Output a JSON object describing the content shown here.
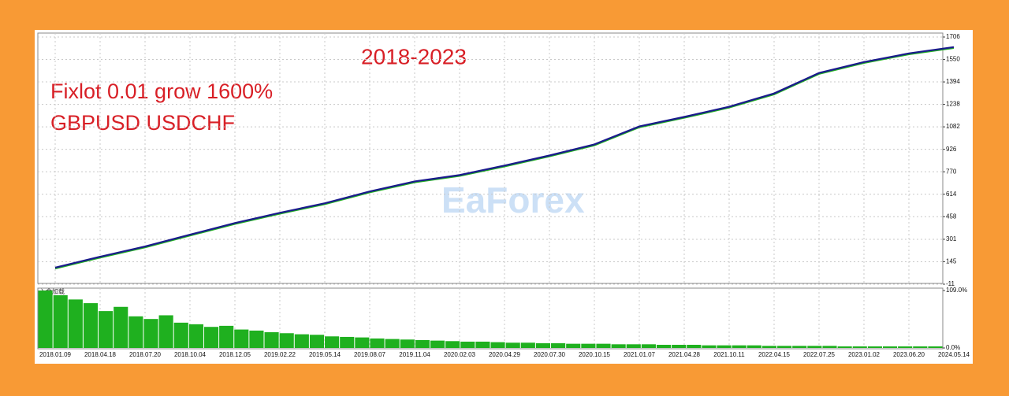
{
  "chart_data": {
    "type": "line",
    "title": "2018-2023",
    "annotations": [
      "Fixlot 0.01 grow 1600%",
      "GBPUSD USDCHF"
    ],
    "watermark": "EaForex",
    "categories": [
      "2018.01.09",
      "2018.04.18",
      "2018.07.20",
      "2018.10.04",
      "2018.12.05",
      "2019.02.22",
      "2019.05.14",
      "2019.08.07",
      "2019.11.04",
      "2020.02.03",
      "2020.04.29",
      "2020.07.30",
      "2020.10.15",
      "2021.01.07",
      "2021.04.28",
      "2021.10.11",
      "2022.04.15",
      "2022.07.25",
      "2023.01.02",
      "2023.06.20",
      "2024.05.14"
    ],
    "series": [
      {
        "color": "#1a1a8c",
        "values": [
          104,
          180,
          251,
          333,
          414,
          485,
          551,
          633,
          703,
          747,
          813,
          883,
          960,
          1085,
          1151,
          1222,
          1314,
          1456,
          1532,
          1592,
          1636
        ]
      },
      {
        "color": "#22b022",
        "values": [
          98,
          174,
          245,
          327,
          408,
          479,
          545,
          627,
          697,
          741,
          807,
          877,
          954,
          1079,
          1145,
          1216,
          1308,
          1450,
          1526,
          1586,
          1630
        ]
      }
    ],
    "ylim": [
      -11,
      1706
    ],
    "yticks": [
      -11,
      145,
      301,
      458,
      614,
      770,
      926,
      1082,
      1238,
      1394,
      1550,
      1706
    ],
    "grid": true,
    "sub_chart": {
      "type": "bar",
      "label": "入金加载",
      "color": "#1fb01f",
      "ylim": [
        0,
        109
      ],
      "yticks": [
        {
          "value": 0,
          "label": "0.0%"
        },
        {
          "value": 109,
          "label": "109.0%"
        }
      ],
      "values": [
        109,
        100,
        92,
        85,
        70,
        78,
        60,
        55,
        62,
        48,
        45,
        40,
        42,
        35,
        33,
        30,
        28,
        26,
        25,
        22,
        21,
        20,
        18,
        17,
        16,
        15,
        14,
        13,
        12,
        12,
        11,
        10,
        10,
        9,
        9,
        8,
        8,
        8,
        7,
        7,
        7,
        6,
        6,
        6,
        5,
        5,
        5,
        5,
        4,
        4,
        4,
        4,
        4,
        3,
        3,
        3,
        3,
        3,
        3,
        3
      ]
    }
  }
}
